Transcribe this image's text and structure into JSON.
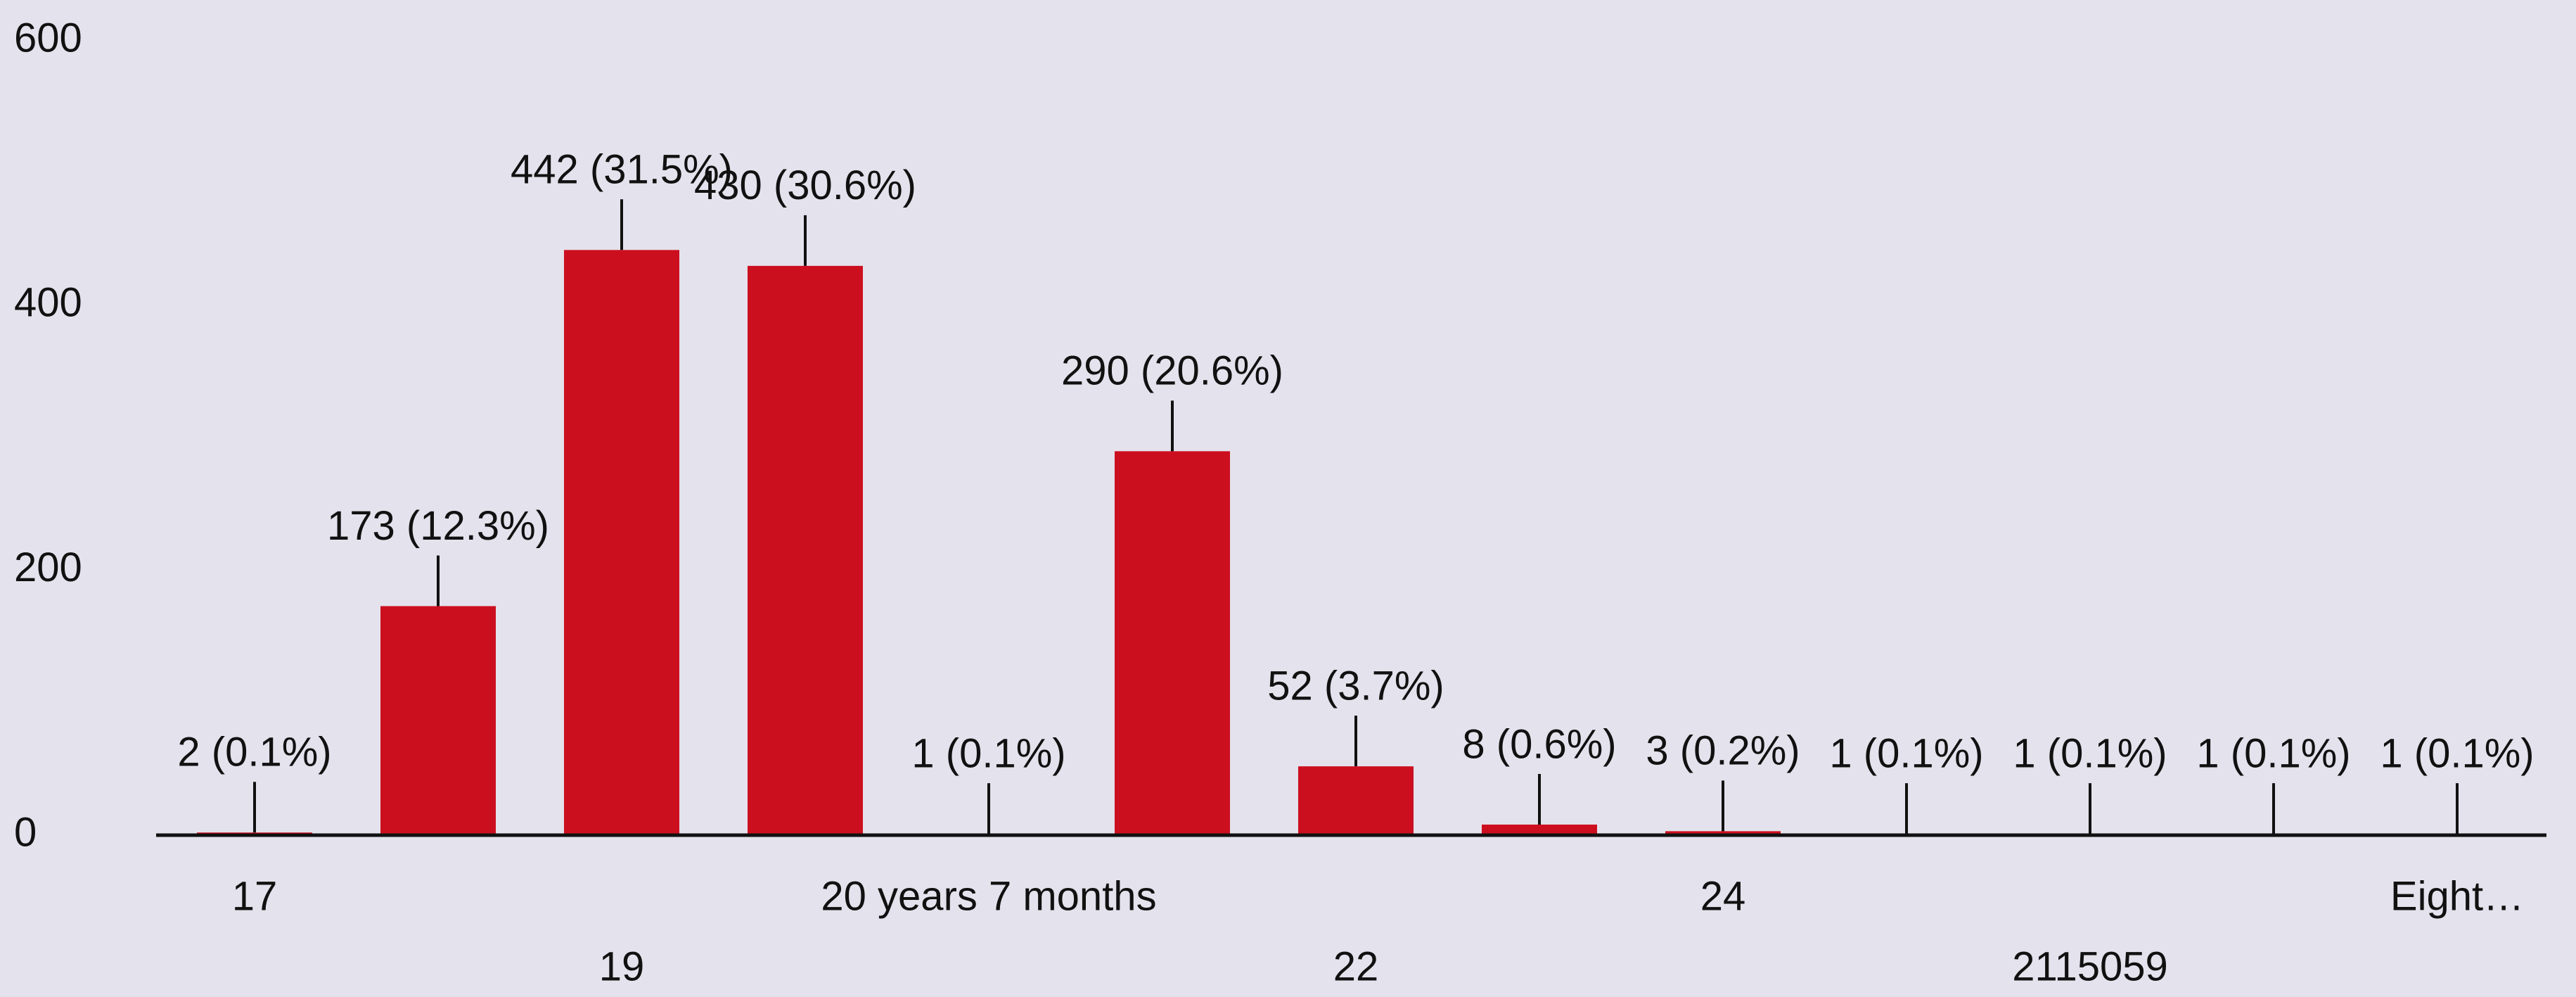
{
  "chart_data": {
    "type": "bar",
    "categories": [
      "17",
      null,
      "19",
      null,
      "20 years 7 months",
      null,
      "22",
      null,
      "24",
      null,
      "2115059",
      null,
      "Eight…"
    ],
    "values": [
      2,
      173,
      442,
      430,
      1,
      290,
      52,
      8,
      3,
      1,
      1,
      1,
      1
    ],
    "value_labels": [
      "2 (0.1%)",
      "173 (12.3%)",
      "442 (31.5%)",
      "430 (30.6%)",
      "1 (0.1%)",
      "290 (20.6%)",
      "52 (3.7%)",
      "8 (0.6%)",
      "3 (0.2%)",
      "1 (0.1%)",
      "1 (0.1%)",
      "1 (0.1%)",
      "1 (0.1%)"
    ],
    "color": "#cc0f1f",
    "ylim": [
      0,
      600
    ],
    "yticks": [
      0,
      200,
      400,
      600
    ]
  }
}
